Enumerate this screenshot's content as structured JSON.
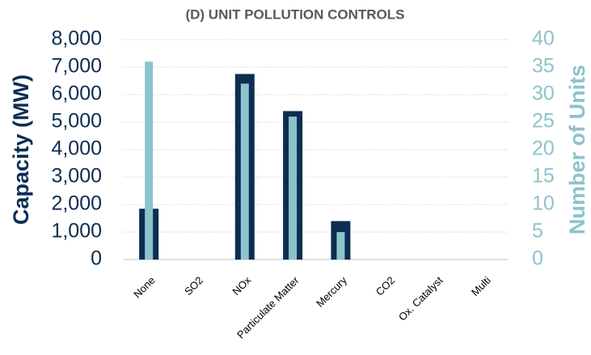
{
  "chart_data": {
    "type": "bar",
    "title": "(D) UNIT POLLUTION CONTROLS",
    "y_label": "Capacity (MW)",
    "y2_label": "Number of Units",
    "categories": [
      "None",
      "SO2",
      "NOx",
      "Particulate Matter",
      "Mercury",
      "CO2",
      "Ox. Catalyst",
      "Multi"
    ],
    "series": [
      {
        "name": "Capacity (MW)",
        "color": "#0d2d52",
        "values": [
          1850,
          0,
          6750,
          5400,
          1400,
          0,
          0,
          0
        ]
      },
      {
        "name": "Number of Units",
        "color": "#8dc3cb",
        "axis": "y2",
        "values": [
          36,
          0,
          32,
          26,
          5,
          0,
          0,
          0
        ]
      }
    ],
    "ylim": [
      0,
      8000
    ],
    "yticks": [
      0,
      {
        "value": 1000,
        "label": "1,000"
      },
      {
        "value": 2000,
        "label": "2,000"
      },
      {
        "value": 3000,
        "label": "3,000"
      },
      {
        "value": 4000,
        "label": "4,000"
      },
      {
        "value": 5000,
        "label": "5,000"
      },
      {
        "value": 6000,
        "label": "6,000"
      },
      {
        "value": 7000,
        "label": "7,000"
      },
      {
        "value": 8000,
        "label": "8,000"
      }
    ],
    "y2lim": [
      0,
      40
    ],
    "y2ticks": [
      0,
      5,
      10,
      15,
      20,
      25,
      30,
      35,
      40
    ],
    "grid": true
  }
}
